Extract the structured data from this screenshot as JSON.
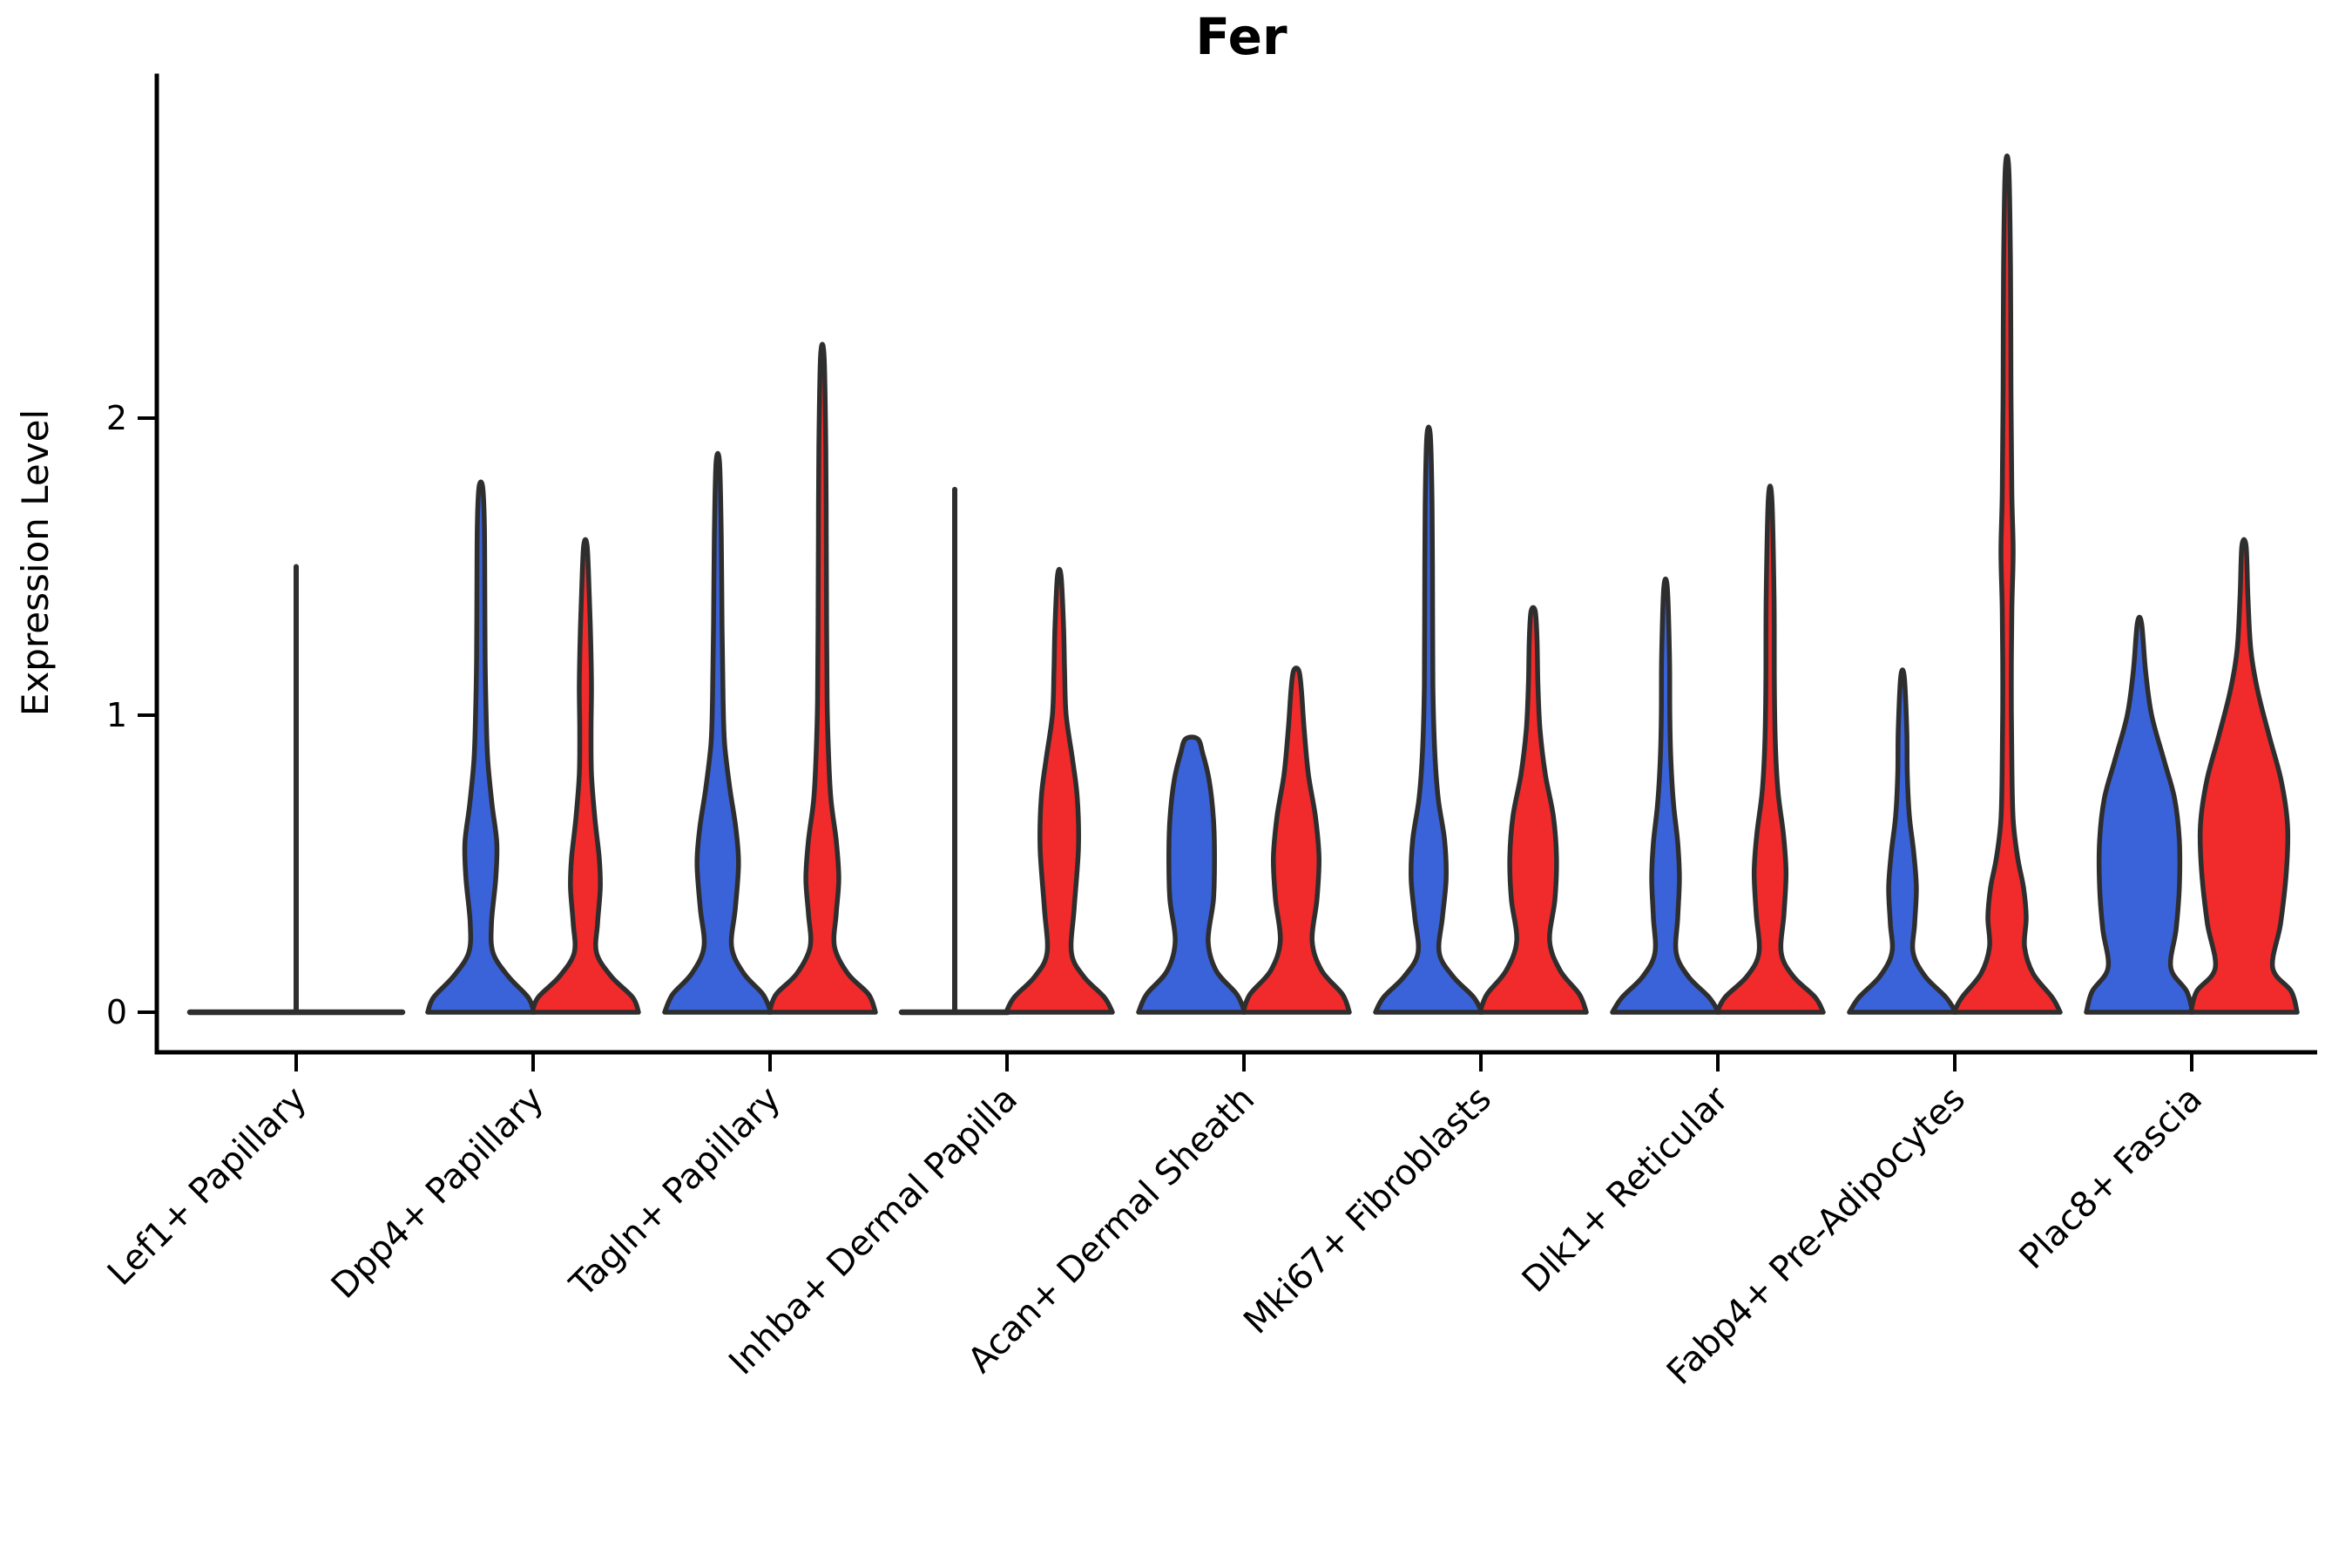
{
  "figure": {
    "title": "Fer"
  },
  "chart_data": {
    "type": "violin",
    "title": "Fer",
    "ylabel": "Expression Level",
    "xlabel": "",
    "yticks": [
      0,
      1,
      2
    ],
    "ylim": [
      -0.135,
      3.16
    ],
    "grid": false,
    "legend": "none",
    "split_colors": {
      "blue": "#3A62D9",
      "red": "#F12A2B"
    },
    "outline_color": "#2E2E2E",
    "axis_color": "#000000",
    "categories": [
      "Lef1+ Papillary",
      "Dpp4+ Papillary",
      "Tagln+ Papillary",
      "Inhba+ Dermal Papilla",
      "Acan+ Dermal Sheath",
      "Mki67+ Fibroblasts",
      "Dlk1+ Reticular",
      "Fabp4+ Pre-Adipocytes",
      "Plac8+ Fascia"
    ],
    "violins": [
      {
        "cat": 0,
        "side": "center",
        "color": null,
        "kind": "flat",
        "max": 1.5,
        "width": 2.0
      },
      {
        "cat": 1,
        "side": "blue",
        "color": "blue",
        "kind": "violin",
        "max": 1.77,
        "profile": [
          [
            0,
            1
          ],
          [
            0.05,
            0.89
          ],
          [
            0.12,
            0.52
          ],
          [
            0.2,
            0.23
          ],
          [
            0.3,
            0.2
          ],
          [
            0.45,
            0.28
          ],
          [
            0.57,
            0.3
          ],
          [
            0.7,
            0.21
          ],
          [
            0.85,
            0.13
          ],
          [
            1.0,
            0.1
          ],
          [
            1.2,
            0.08
          ],
          [
            1.45,
            0.074
          ],
          [
            1.65,
            0.066
          ],
          [
            1.77,
            0.033
          ]
        ]
      },
      {
        "cat": 1,
        "side": "red",
        "color": "red",
        "kind": "violin",
        "max": 1.57,
        "profile": [
          [
            0,
            1
          ],
          [
            0.05,
            0.89
          ],
          [
            0.12,
            0.49
          ],
          [
            0.2,
            0.21
          ],
          [
            0.3,
            0.23
          ],
          [
            0.42,
            0.28
          ],
          [
            0.52,
            0.26
          ],
          [
            0.65,
            0.18
          ],
          [
            0.8,
            0.115
          ],
          [
            0.95,
            0.107
          ],
          [
            1.1,
            0.115
          ],
          [
            1.25,
            0.1
          ],
          [
            1.4,
            0.074
          ],
          [
            1.57,
            0.033
          ]
        ]
      },
      {
        "cat": 2,
        "side": "blue",
        "color": "blue",
        "kind": "violin",
        "max": 1.85,
        "profile": [
          [
            0,
            1
          ],
          [
            0.06,
            0.85
          ],
          [
            0.13,
            0.49
          ],
          [
            0.22,
            0.26
          ],
          [
            0.35,
            0.33
          ],
          [
            0.5,
            0.39
          ],
          [
            0.62,
            0.34
          ],
          [
            0.75,
            0.23
          ],
          [
            0.9,
            0.13
          ],
          [
            1.05,
            0.1
          ],
          [
            1.3,
            0.08
          ],
          [
            1.6,
            0.066
          ],
          [
            1.85,
            0.033
          ]
        ]
      },
      {
        "cat": 2,
        "side": "red",
        "color": "red",
        "kind": "violin",
        "max": 2.21,
        "profile": [
          [
            0,
            1
          ],
          [
            0.06,
            0.87
          ],
          [
            0.13,
            0.48
          ],
          [
            0.22,
            0.23
          ],
          [
            0.33,
            0.26
          ],
          [
            0.45,
            0.31
          ],
          [
            0.58,
            0.26
          ],
          [
            0.72,
            0.16
          ],
          [
            0.88,
            0.115
          ],
          [
            1.05,
            0.09
          ],
          [
            1.3,
            0.08
          ],
          [
            1.6,
            0.074
          ],
          [
            1.9,
            0.066
          ],
          [
            2.21,
            0.033
          ]
        ]
      },
      {
        "cat": 3,
        "side": "blue",
        "color": null,
        "kind": "flat",
        "max": 1.76,
        "width": 1.0
      },
      {
        "cat": 3,
        "side": "red",
        "color": "red",
        "kind": "violin",
        "max": 1.47,
        "profile": [
          [
            0,
            1
          ],
          [
            0.05,
            0.85
          ],
          [
            0.12,
            0.46
          ],
          [
            0.2,
            0.23
          ],
          [
            0.35,
            0.28
          ],
          [
            0.55,
            0.36
          ],
          [
            0.72,
            0.34
          ],
          [
            0.85,
            0.25
          ],
          [
            1.0,
            0.13
          ],
          [
            1.15,
            0.1
          ],
          [
            1.3,
            0.08
          ],
          [
            1.47,
            0.033
          ]
        ]
      },
      {
        "cat": 4,
        "side": "blue",
        "color": "blue",
        "kind": "violin",
        "max": 0.92,
        "profile": [
          [
            0,
            1
          ],
          [
            0.06,
            0.85
          ],
          [
            0.14,
            0.46
          ],
          [
            0.24,
            0.31
          ],
          [
            0.38,
            0.41
          ],
          [
            0.52,
            0.43
          ],
          [
            0.65,
            0.41
          ],
          [
            0.78,
            0.33
          ],
          [
            0.87,
            0.21
          ],
          [
            0.92,
            0.115
          ]
        ]
      },
      {
        "cat": 4,
        "side": "red",
        "color": "red",
        "kind": "violin",
        "max": 1.15,
        "profile": [
          [
            0,
            1
          ],
          [
            0.06,
            0.87
          ],
          [
            0.14,
            0.48
          ],
          [
            0.24,
            0.3
          ],
          [
            0.38,
            0.39
          ],
          [
            0.52,
            0.43
          ],
          [
            0.66,
            0.36
          ],
          [
            0.8,
            0.23
          ],
          [
            0.95,
            0.15
          ],
          [
            1.08,
            0.1
          ],
          [
            1.15,
            0.05
          ]
        ]
      },
      {
        "cat": 5,
        "side": "blue",
        "color": "blue",
        "kind": "violin",
        "max": 1.94,
        "profile": [
          [
            0,
            1
          ],
          [
            0.05,
            0.85
          ],
          [
            0.12,
            0.46
          ],
          [
            0.2,
            0.2
          ],
          [
            0.32,
            0.26
          ],
          [
            0.45,
            0.33
          ],
          [
            0.58,
            0.3
          ],
          [
            0.72,
            0.18
          ],
          [
            0.88,
            0.115
          ],
          [
            1.1,
            0.08
          ],
          [
            1.4,
            0.074
          ],
          [
            1.7,
            0.066
          ],
          [
            1.94,
            0.033
          ]
        ]
      },
      {
        "cat": 5,
        "side": "red",
        "color": "red",
        "kind": "violin",
        "max": 1.35,
        "profile": [
          [
            0,
            1
          ],
          [
            0.06,
            0.87
          ],
          [
            0.14,
            0.51
          ],
          [
            0.24,
            0.31
          ],
          [
            0.38,
            0.41
          ],
          [
            0.52,
            0.44
          ],
          [
            0.66,
            0.38
          ],
          [
            0.8,
            0.23
          ],
          [
            0.95,
            0.13
          ],
          [
            1.1,
            0.09
          ],
          [
            1.25,
            0.074
          ],
          [
            1.35,
            0.04
          ]
        ]
      },
      {
        "cat": 6,
        "side": "blue",
        "color": "blue",
        "kind": "violin",
        "max": 1.43,
        "profile": [
          [
            0,
            1
          ],
          [
            0.05,
            0.82
          ],
          [
            0.12,
            0.43
          ],
          [
            0.2,
            0.2
          ],
          [
            0.32,
            0.23
          ],
          [
            0.45,
            0.26
          ],
          [
            0.57,
            0.23
          ],
          [
            0.7,
            0.15
          ],
          [
            0.85,
            0.1
          ],
          [
            1.0,
            0.08
          ],
          [
            1.2,
            0.074
          ],
          [
            1.43,
            0.033
          ]
        ]
      },
      {
        "cat": 6,
        "side": "red",
        "color": "red",
        "kind": "violin",
        "max": 1.73,
        "profile": [
          [
            0,
            1
          ],
          [
            0.05,
            0.85
          ],
          [
            0.12,
            0.44
          ],
          [
            0.2,
            0.21
          ],
          [
            0.33,
            0.26
          ],
          [
            0.47,
            0.3
          ],
          [
            0.6,
            0.25
          ],
          [
            0.74,
            0.15
          ],
          [
            0.9,
            0.1
          ],
          [
            1.1,
            0.08
          ],
          [
            1.4,
            0.074
          ],
          [
            1.73,
            0.033
          ]
        ]
      },
      {
        "cat": 7,
        "side": "blue",
        "color": "blue",
        "kind": "violin",
        "max": 1.13,
        "profile": [
          [
            0,
            1
          ],
          [
            0.05,
            0.82
          ],
          [
            0.12,
            0.43
          ],
          [
            0.2,
            0.2
          ],
          [
            0.3,
            0.23
          ],
          [
            0.42,
            0.26
          ],
          [
            0.54,
            0.21
          ],
          [
            0.66,
            0.13
          ],
          [
            0.8,
            0.09
          ],
          [
            0.95,
            0.08
          ],
          [
            1.13,
            0.033
          ]
        ]
      },
      {
        "cat": 7,
        "side": "red",
        "color": "red",
        "kind": "violin",
        "max": 2.84,
        "profile": [
          [
            0,
            1
          ],
          [
            0.05,
            0.85
          ],
          [
            0.13,
            0.49
          ],
          [
            0.22,
            0.33
          ],
          [
            0.32,
            0.36
          ],
          [
            0.42,
            0.31
          ],
          [
            0.52,
            0.2
          ],
          [
            0.65,
            0.115
          ],
          [
            0.85,
            0.09
          ],
          [
            1.1,
            0.08
          ],
          [
            1.35,
            0.09
          ],
          [
            1.55,
            0.115
          ],
          [
            1.75,
            0.09
          ],
          [
            2.1,
            0.074
          ],
          [
            2.5,
            0.066
          ],
          [
            2.84,
            0.033
          ]
        ]
      },
      {
        "cat": 8,
        "side": "blue",
        "color": "blue",
        "kind": "violin",
        "max": 1.31,
        "profile": [
          [
            0,
            1
          ],
          [
            0.07,
            0.89
          ],
          [
            0.15,
            0.59
          ],
          [
            0.28,
            0.69
          ],
          [
            0.42,
            0.75
          ],
          [
            0.58,
            0.75
          ],
          [
            0.72,
            0.66
          ],
          [
            0.85,
            0.46
          ],
          [
            1.0,
            0.23
          ],
          [
            1.15,
            0.115
          ],
          [
            1.31,
            0.04
          ]
        ]
      },
      {
        "cat": 8,
        "side": "red",
        "color": "red",
        "kind": "violin",
        "max": 1.57,
        "profile": [
          [
            0,
            1
          ],
          [
            0.07,
            0.89
          ],
          [
            0.15,
            0.54
          ],
          [
            0.3,
            0.69
          ],
          [
            0.48,
            0.8
          ],
          [
            0.63,
            0.82
          ],
          [
            0.78,
            0.7
          ],
          [
            0.92,
            0.49
          ],
          [
            1.08,
            0.26
          ],
          [
            1.22,
            0.13
          ],
          [
            1.4,
            0.074
          ],
          [
            1.57,
            0.04
          ]
        ]
      }
    ]
  }
}
